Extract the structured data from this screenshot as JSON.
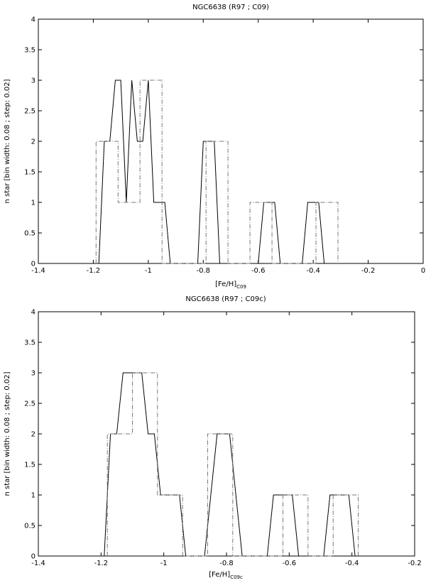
{
  "chart_data": [
    {
      "type": "line",
      "title": "NGC6638 (R97 ; C09)",
      "xlabel": "[Fe/H]",
      "xlabel_sub": "C09",
      "ylabel": "n star [bin width: 0.08 ; step: 0.02]",
      "xlim": [
        -1.4,
        0
      ],
      "ylim": [
        0,
        4
      ],
      "xticks": [
        -1.4,
        -1.2,
        -1,
        -0.8,
        -0.6,
        -0.4,
        -0.2,
        0
      ],
      "xtick_labels": [
        "-1.4",
        "-1.2",
        "-1",
        "-0.8",
        "-0.6",
        "-0.4",
        "-0.2",
        "0"
      ],
      "yticks": [
        0,
        0.5,
        1,
        1.5,
        2,
        2.5,
        3,
        3.5,
        4
      ],
      "ytick_labels": [
        "0",
        "0.5",
        "1",
        "1.5",
        "2",
        "2.5",
        "3",
        "3.5",
        "4"
      ],
      "series": [
        {
          "style": "solid",
          "color": "#000000",
          "x": [
            -1.18,
            -1.16,
            -1.14,
            -1.12,
            -1.1,
            -1.08,
            -1.06,
            -1.04,
            -1.02,
            -1.0,
            -0.98,
            -0.96,
            -0.94,
            -0.92,
            -0.82,
            -0.8,
            -0.78,
            -0.76,
            -0.74,
            -0.72,
            -0.6,
            -0.58,
            -0.56,
            -0.54,
            -0.52,
            -0.44,
            -0.42,
            -0.4,
            -0.38,
            -0.36,
            -0.34
          ],
          "y": [
            0,
            2,
            2,
            3,
            3,
            1,
            3,
            2,
            2,
            3,
            1,
            1,
            1,
            0,
            0,
            2,
            2,
            2,
            0,
            0,
            0,
            1,
            1,
            1,
            0,
            0,
            1,
            1,
            1,
            0,
            0
          ]
        },
        {
          "style": "dashdot",
          "color": "#777777",
          "x": [
            -1.19,
            -1.19,
            -1.11,
            -1.11,
            -1.03,
            -1.03,
            -0.95,
            -0.95,
            -0.79,
            -0.79,
            -0.71,
            -0.71,
            -0.63,
            -0.63,
            -0.55,
            -0.55,
            -0.39,
            -0.39,
            -0.31,
            -0.31
          ],
          "y": [
            0,
            2,
            2,
            1,
            1,
            3,
            3,
            0,
            0,
            2,
            2,
            0,
            0,
            1,
            1,
            0,
            0,
            1,
            1,
            0
          ]
        }
      ]
    },
    {
      "type": "line",
      "title": "NGC6638 (R97 ; C09c)",
      "xlabel": "[Fe/H]",
      "xlabel_sub": "C09c",
      "ylabel": "n star [bin width: 0.08 ; step: 0.02]",
      "xlim": [
        -1.4,
        -0.2
      ],
      "ylim": [
        0,
        4
      ],
      "xticks": [
        -1.4,
        -1.2,
        -1,
        -0.8,
        -0.6,
        -0.4,
        -0.2
      ],
      "xtick_labels": [
        "-1.4",
        "-1.2",
        "-1",
        "-0.8",
        "-0.6",
        "-0.4",
        "-0.2"
      ],
      "yticks": [
        0,
        0.5,
        1,
        1.5,
        2,
        2.5,
        3,
        3.5,
        4
      ],
      "ytick_labels": [
        "0",
        "0.5",
        "1",
        "1.5",
        "2",
        "2.5",
        "3",
        "3.5",
        "4"
      ],
      "series": [
        {
          "style": "solid",
          "color": "#000000",
          "x": [
            -1.19,
            -1.17,
            -1.15,
            -1.13,
            -1.11,
            -1.09,
            -1.07,
            -1.05,
            -1.03,
            -1.01,
            -0.99,
            -0.97,
            -0.95,
            -0.93,
            -0.87,
            -0.85,
            -0.83,
            -0.81,
            -0.79,
            -0.77,
            -0.75,
            -0.67,
            -0.65,
            -0.63,
            -0.61,
            -0.59,
            -0.57,
            -0.49,
            -0.47,
            -0.45,
            -0.43,
            -0.41,
            -0.39
          ],
          "y": [
            0,
            2,
            2,
            3,
            3,
            3,
            3,
            2,
            2,
            1,
            1,
            1,
            1,
            0,
            0,
            1,
            2,
            2,
            2,
            1,
            0,
            0,
            1,
            1,
            1,
            1,
            0,
            0,
            1,
            1,
            1,
            1,
            0
          ]
        },
        {
          "style": "dashdot",
          "color": "#777777",
          "x": [
            -1.18,
            -1.18,
            -1.1,
            -1.1,
            -1.02,
            -1.02,
            -0.94,
            -0.94,
            -0.86,
            -0.86,
            -0.78,
            -0.78,
            -0.62,
            -0.62,
            -0.54,
            -0.54,
            -0.46,
            -0.46,
            -0.38,
            -0.38
          ],
          "y": [
            0,
            2,
            2,
            3,
            3,
            1,
            1,
            0,
            0,
            2,
            2,
            0,
            0,
            1,
            1,
            0,
            0,
            1,
            1,
            0
          ]
        }
      ]
    }
  ]
}
